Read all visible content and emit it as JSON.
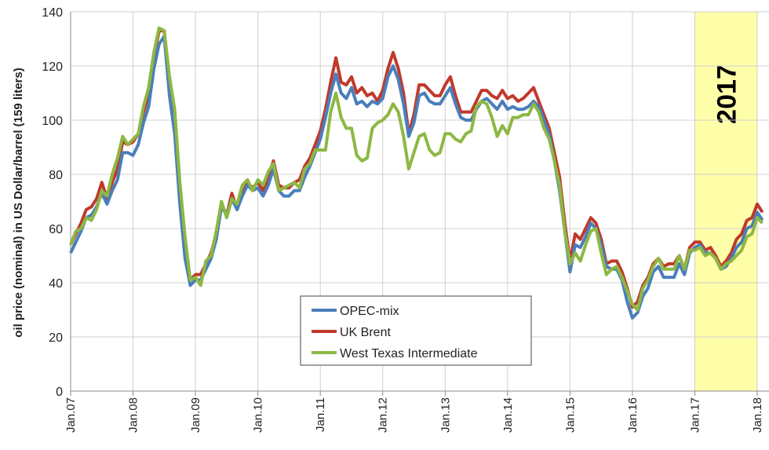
{
  "chart_data": {
    "type": "line",
    "y_label": "oil price (nominal) in US Dollar/barrel (159 liters)",
    "annotation": "2017",
    "categories": [
      "Jan.07",
      null,
      null,
      null,
      null,
      null,
      null,
      null,
      null,
      null,
      null,
      null,
      "Jan.08",
      null,
      null,
      null,
      null,
      null,
      null,
      null,
      null,
      null,
      null,
      null,
      "Jan.09",
      null,
      null,
      null,
      null,
      null,
      null,
      null,
      null,
      null,
      null,
      null,
      "Jan.10",
      null,
      null,
      null,
      null,
      null,
      null,
      null,
      null,
      null,
      null,
      null,
      "Jan.11",
      null,
      null,
      null,
      null,
      null,
      null,
      null,
      null,
      null,
      null,
      null,
      "Jan.12",
      null,
      null,
      null,
      null,
      null,
      null,
      null,
      null,
      null,
      null,
      null,
      "Jan.13",
      null,
      null,
      null,
      null,
      null,
      null,
      null,
      null,
      null,
      null,
      null,
      "Jan.14",
      null,
      null,
      null,
      null,
      null,
      null,
      null,
      null,
      null,
      null,
      null,
      "Jan.15",
      null,
      null,
      null,
      null,
      null,
      null,
      null,
      null,
      null,
      null,
      null,
      "Jan.16",
      null,
      null,
      null,
      null,
      null,
      null,
      null,
      null,
      null,
      null,
      null,
      "Jan.17",
      null,
      null,
      null,
      null,
      null,
      null,
      null,
      null,
      null,
      null,
      null,
      "Jan.18",
      null
    ],
    "series": [
      {
        "name": "OPEC-mix",
        "color": "#4a7ebb",
        "values": [
          51,
          55,
          59,
          64,
          65,
          68,
          73,
          69,
          74,
          78,
          88,
          88,
          87,
          91,
          99,
          105,
          119,
          128,
          131,
          109,
          95,
          69,
          49,
          39,
          41,
          41,
          45,
          49,
          56,
          68,
          65,
          71,
          67,
          72,
          76,
          74,
          75,
          72,
          76,
          82,
          74,
          72,
          72,
          74,
          74,
          79,
          83,
          88,
          93,
          101,
          110,
          117,
          110,
          108,
          112,
          106,
          107,
          105,
          107,
          106,
          108,
          116,
          120,
          115,
          106,
          94,
          99,
          109,
          110,
          107,
          106,
          106,
          109,
          112,
          106,
          101,
          100,
          100,
          104,
          107,
          108,
          106,
          104,
          107,
          104,
          105,
          104,
          104,
          105,
          107,
          105,
          100,
          95,
          85,
          74,
          59,
          44,
          54,
          53,
          57,
          62,
          60,
          54,
          46,
          45,
          45,
          41,
          33,
          27,
          29,
          35,
          38,
          44,
          46,
          42,
          42,
          42,
          47,
          43,
          51,
          53,
          54,
          51,
          51,
          49,
          45,
          46,
          49,
          53,
          55,
          60,
          61,
          66,
          63
        ]
      },
      {
        "name": "UK Brent",
        "color": "#c0392b",
        "values": [
          54,
          58,
          62,
          67,
          68,
          71,
          77,
          71,
          77,
          82,
          92,
          91,
          92,
          95,
          103,
          109,
          123,
          133,
          133,
          113,
          98,
          72,
          53,
          41,
          43,
          43,
          47,
          51,
          58,
          69,
          65,
          73,
          67,
          73,
          77,
          75,
          77,
          74,
          79,
          85,
          76,
          75,
          75,
          77,
          78,
          83,
          86,
          91,
          96,
          104,
          114,
          123,
          114,
          113,
          116,
          110,
          112,
          109,
          110,
          107,
          111,
          119,
          125,
          119,
          110,
          95,
          102,
          113,
          113,
          111,
          109,
          109,
          113,
          116,
          109,
          103,
          103,
          103,
          107,
          111,
          111,
          109,
          108,
          111,
          108,
          109,
          107,
          108,
          110,
          112,
          107,
          102,
          97,
          88,
          79,
          62,
          48,
          58,
          56,
          60,
          64,
          62,
          56,
          47,
          48,
          48,
          44,
          38,
          31,
          33,
          39,
          42,
          47,
          49,
          46,
          47,
          47,
          50,
          45,
          53,
          55,
          55,
          52,
          53,
          50,
          46,
          48,
          51,
          56,
          58,
          63,
          64,
          69,
          66
        ]
      },
      {
        "name": "West Texas Intermediate",
        "color": "#8db843",
        "values": [
          54,
          59,
          60,
          64,
          63,
          67,
          74,
          72,
          80,
          86,
          94,
          91,
          93,
          95,
          105,
          112,
          125,
          134,
          133,
          116,
          104,
          77,
          57,
          41,
          42,
          39,
          48,
          50,
          59,
          70,
          64,
          71,
          69,
          76,
          78,
          74,
          78,
          76,
          81,
          84,
          74,
          75,
          76,
          77,
          75,
          82,
          84,
          89,
          89,
          89,
          103,
          110,
          101,
          97,
          97,
          87,
          85,
          86,
          97,
          99,
          100,
          102,
          106,
          103,
          94,
          82,
          88,
          94,
          95,
          89,
          87,
          88,
          95,
          95,
          93,
          92,
          95,
          96,
          105,
          107,
          106,
          101,
          94,
          98,
          95,
          101,
          101,
          102,
          102,
          106,
          103,
          97,
          93,
          85,
          76,
          59,
          47,
          51,
          48,
          54,
          59,
          60,
          51,
          43,
          45,
          46,
          42,
          37,
          32,
          30,
          38,
          41,
          46,
          49,
          45,
          45,
          45,
          50,
          45,
          52,
          52,
          53,
          50,
          51,
          49,
          45,
          47,
          48,
          50,
          52,
          57,
          58,
          64,
          62
        ]
      }
    ],
    "ylim": [
      0,
      140
    ],
    "yticks": [
      0,
      20,
      40,
      60,
      80,
      100,
      120,
      140
    ],
    "grid": true
  }
}
